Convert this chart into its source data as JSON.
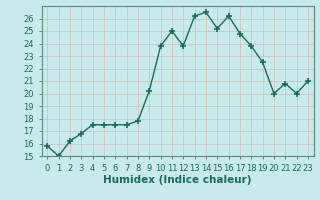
{
  "x": [
    0,
    1,
    2,
    3,
    4,
    5,
    6,
    7,
    8,
    9,
    10,
    11,
    12,
    13,
    14,
    15,
    16,
    17,
    18,
    19,
    20,
    21,
    22,
    23
  ],
  "y": [
    15.8,
    15.0,
    16.2,
    16.8,
    17.5,
    17.5,
    17.5,
    17.5,
    17.8,
    20.2,
    23.8,
    25.0,
    23.8,
    26.2,
    26.5,
    25.2,
    26.2,
    24.8,
    23.8,
    22.5,
    20.0,
    20.8,
    20.0,
    21.0
  ],
  "line_color": "#1a6b5a",
  "marker": "+",
  "marker_size": 4,
  "line_width": 1.0,
  "bg_color": "#c8eaea",
  "grid_color": "#d4b8b8",
  "xlabel": "Humidex (Indice chaleur)",
  "ylim": [
    15,
    27
  ],
  "xlim": [
    -0.5,
    23.5
  ],
  "yticks": [
    15,
    16,
    17,
    18,
    19,
    20,
    21,
    22,
    23,
    24,
    25,
    26
  ],
  "xticks": [
    0,
    1,
    2,
    3,
    4,
    5,
    6,
    7,
    8,
    9,
    10,
    11,
    12,
    13,
    14,
    15,
    16,
    17,
    18,
    19,
    20,
    21,
    22,
    23
  ],
  "tick_fontsize": 6,
  "xlabel_fontsize": 7.5,
  "spine_color": "#5a8a7a"
}
